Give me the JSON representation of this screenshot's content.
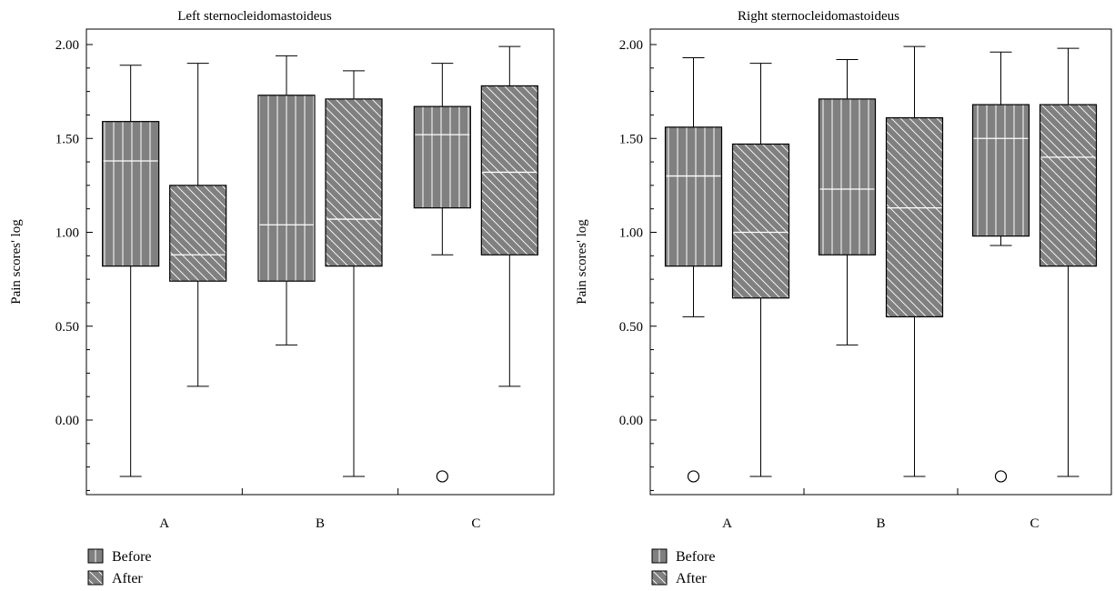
{
  "legend": {
    "before_label": "Before",
    "after_label": "After"
  },
  "colors": {
    "box_fill": "#808080",
    "hatch": "#ffffff",
    "median": "#ffffff",
    "frame": "#000000"
  },
  "chart_data": [
    {
      "type": "box",
      "title": "Left sternocleidomastoideus",
      "ylabel": "Pain scores' log",
      "xlabel": "",
      "ylim": [
        -0.4,
        2.08
      ],
      "yticks": [
        "2.00",
        "1.50",
        "1.00",
        "0.50",
        "0.00"
      ],
      "categories": [
        "A",
        "B",
        "C"
      ],
      "series": [
        {
          "name": "Before",
          "pattern": "vertical",
          "boxes": [
            {
              "min": -0.3,
              "q1": 0.82,
              "median": 1.38,
              "q3": 1.59,
              "max": 1.89,
              "outliers": []
            },
            {
              "min": 0.4,
              "q1": 0.74,
              "median": 1.04,
              "q3": 1.73,
              "max": 1.94,
              "outliers": []
            },
            {
              "min": 0.88,
              "q1": 1.13,
              "median": 1.52,
              "q3": 1.67,
              "max": 1.9,
              "outliers": [
                -0.3
              ]
            }
          ]
        },
        {
          "name": "After",
          "pattern": "diagonal",
          "boxes": [
            {
              "min": 0.18,
              "q1": 0.74,
              "median": 0.88,
              "q3": 1.25,
              "max": 1.9,
              "outliers": []
            },
            {
              "min": -0.3,
              "q1": 0.82,
              "median": 1.07,
              "q3": 1.71,
              "max": 1.86,
              "outliers": []
            },
            {
              "min": 0.18,
              "q1": 0.88,
              "median": 1.32,
              "q3": 1.78,
              "max": 1.99,
              "outliers": []
            }
          ]
        }
      ]
    },
    {
      "type": "box",
      "title": "Right sternocleidomastoideus",
      "ylabel": "Pain scores' log",
      "xlabel": "",
      "ylim": [
        -0.4,
        2.08
      ],
      "yticks": [
        "2.00",
        "1.50",
        "1.00",
        "0.50",
        "0.00"
      ],
      "categories": [
        "A",
        "B",
        "C"
      ],
      "series": [
        {
          "name": "Before",
          "pattern": "vertical",
          "boxes": [
            {
              "min": 0.55,
              "q1": 0.82,
              "median": 1.3,
              "q3": 1.56,
              "max": 1.93,
              "outliers": [
                -0.3
              ]
            },
            {
              "min": 0.4,
              "q1": 0.88,
              "median": 1.23,
              "q3": 1.71,
              "max": 1.92,
              "outliers": []
            },
            {
              "min": 0.93,
              "q1": 0.98,
              "median": 1.5,
              "q3": 1.68,
              "max": 1.96,
              "outliers": [
                -0.3
              ]
            }
          ]
        },
        {
          "name": "After",
          "pattern": "diagonal",
          "boxes": [
            {
              "min": -0.3,
              "q1": 0.65,
              "median": 1.0,
              "q3": 1.47,
              "max": 1.9,
              "outliers": []
            },
            {
              "min": -0.3,
              "q1": 0.55,
              "median": 1.13,
              "q3": 1.61,
              "max": 1.99,
              "outliers": []
            },
            {
              "min": -0.3,
              "q1": 0.82,
              "median": 1.4,
              "q3": 1.68,
              "max": 1.98,
              "outliers": []
            }
          ]
        }
      ]
    }
  ]
}
